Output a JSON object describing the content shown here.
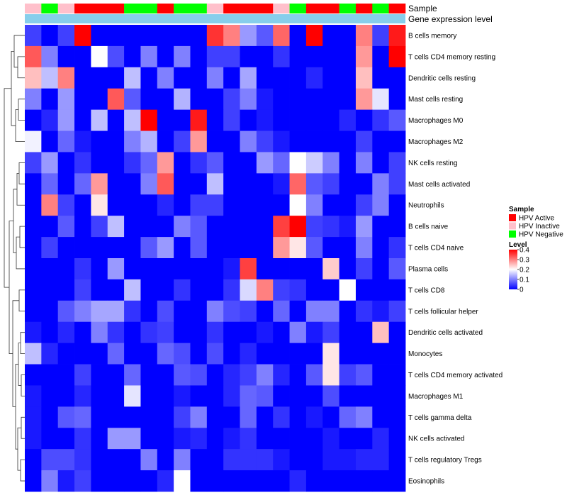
{
  "chart_data": {
    "type": "heatmap",
    "title": "",
    "row_labels": [
      "B cells memory",
      "T cells CD4 memory resting",
      "Dendritic cells resting",
      "Mast cells resting",
      "Macrophages M0",
      "Macrophages M2",
      "NK cells resting",
      "Mast cells activated",
      "Neutrophils",
      "B cells naive",
      "T cells CD4 naive",
      "Plasma cells",
      "T cells CD8",
      "T cells follicular helper",
      "Dendritic cells activated",
      "Monocytes",
      "T cells CD4 memory activated",
      "Macrophages M1",
      "T cells gamma delta",
      "NK cells activated",
      "T cells regulatory  Tregs",
      "Eosinophils"
    ],
    "annotation_tracks": {
      "sample_label": "Sample",
      "gene_label": "Gene expression level",
      "sample_groups": [
        "HPV Inactive",
        "HPV Negative",
        "HPV Inactive",
        "HPV Active",
        "HPV Active",
        "HPV Active",
        "HPV Negative",
        "HPV Negative",
        "HPV Active",
        "HPV Negative",
        "HPV Negative",
        "HPV Inactive",
        "HPV Active",
        "HPV Active",
        "HPV Active",
        "HPV Inactive",
        "HPV Negative",
        "HPV Active",
        "HPV Active",
        "HPV Negative",
        "HPV Active",
        "HPV Negative",
        "HPV Active"
      ],
      "gene_color": "#87ceeb"
    },
    "values": [
      [
        0.05,
        0,
        0.05,
        0.4,
        0,
        0,
        0,
        0,
        0,
        0,
        0,
        0.36,
        0.3,
        0.12,
        0.07,
        0.32,
        0,
        0.4,
        0,
        0,
        0.3,
        0.05,
        0.38
      ],
      [
        0.33,
        0.1,
        0,
        0,
        0.2,
        0.06,
        0,
        0.1,
        0,
        0.1,
        0,
        0.05,
        0.05,
        0,
        0,
        0.04,
        0,
        0,
        0,
        0,
        0.28,
        0,
        0.4
      ],
      [
        0.25,
        0.15,
        0.3,
        0,
        0,
        0,
        0.15,
        0,
        0.1,
        0,
        0,
        0.1,
        0,
        0.13,
        0,
        0,
        0,
        0.03,
        0,
        0,
        0.25,
        0,
        0
      ],
      [
        0.1,
        0,
        0.12,
        0,
        0,
        0.33,
        0.07,
        0,
        0,
        0.14,
        0,
        0,
        0.05,
        0.1,
        0.02,
        0,
        0,
        0,
        0,
        0,
        0.28,
        0.18,
        0
      ],
      [
        0,
        0.03,
        0.12,
        0,
        0.15,
        0,
        0.15,
        0.4,
        0,
        0,
        0.38,
        0,
        0.05,
        0,
        0.02,
        0,
        0,
        0,
        0,
        0.03,
        0,
        0.04,
        0.07
      ],
      [
        0.19,
        0,
        0.08,
        0.02,
        0,
        0,
        0.1,
        0.14,
        0,
        0.05,
        0.28,
        0,
        0,
        0.1,
        0.05,
        0.02,
        0,
        0,
        0,
        0,
        0.05,
        0,
        0
      ],
      [
        0.05,
        0.12,
        0,
        0.04,
        0,
        0,
        0.04,
        0.08,
        0.28,
        0,
        0.04,
        0.07,
        0,
        0,
        0.12,
        0.08,
        0.2,
        0.16,
        0.1,
        0,
        0.1,
        0,
        0.05
      ],
      [
        0,
        0.08,
        0,
        0.08,
        0.28,
        0,
        0,
        0.1,
        0.33,
        0,
        0,
        0.15,
        0,
        0,
        0,
        0.02,
        0.32,
        0.07,
        0.05,
        0,
        0,
        0.1,
        0.05
      ],
      [
        0,
        0.3,
        0.05,
        0,
        0.22,
        0,
        0,
        0,
        0.03,
        0,
        0.05,
        0.05,
        0,
        0,
        0,
        0,
        0.2,
        0.1,
        0,
        0,
        0.05,
        0.1,
        0
      ],
      [
        0,
        0,
        0.07,
        0,
        0.05,
        0.15,
        0,
        0,
        0,
        0.1,
        0.07,
        0,
        0,
        0,
        0,
        0.35,
        0.4,
        0.05,
        0.04,
        0.02,
        0.12,
        0,
        0
      ],
      [
        0,
        0.05,
        0,
        0,
        0,
        0,
        0,
        0.07,
        0.12,
        0,
        0.07,
        0,
        0,
        0,
        0,
        0.28,
        0.22,
        0.07,
        0,
        0,
        0.1,
        0,
        0.04
      ],
      [
        0,
        0,
        0,
        0.04,
        0,
        0.12,
        0,
        0,
        0,
        0,
        0,
        0,
        0.02,
        0.35,
        0,
        0,
        0,
        0,
        0.24,
        0,
        0.05,
        0,
        0.07
      ],
      [
        0,
        0,
        0,
        0.05,
        0,
        0,
        0.15,
        0,
        0,
        0.04,
        0,
        0,
        0.04,
        0.17,
        0.3,
        0.05,
        0.04,
        0,
        0,
        0.2,
        0,
        0,
        0
      ],
      [
        0,
        0,
        0.07,
        0.1,
        0.13,
        0.13,
        0.04,
        0,
        0.06,
        0,
        0,
        0.1,
        0.06,
        0.05,
        0,
        0.08,
        0,
        0.1,
        0.1,
        0,
        0.04,
        0.02,
        0.05
      ],
      [
        0.02,
        0,
        0.03,
        0,
        0.1,
        0.04,
        0,
        0.04,
        0.05,
        0,
        0,
        0.04,
        0,
        0,
        0.02,
        0,
        0.1,
        0.02,
        0.05,
        0,
        0,
        0.25,
        0
      ],
      [
        0.15,
        0.03,
        0,
        0,
        0,
        0.08,
        0,
        0,
        0.08,
        0.06,
        0,
        0.06,
        0,
        0.03,
        0,
        0,
        0,
        0,
        0.22,
        0,
        0,
        0,
        0
      ],
      [
        0,
        0,
        0,
        0.05,
        0,
        0,
        0.08,
        0,
        0,
        0.07,
        0.06,
        0,
        0.03,
        0.05,
        0.1,
        0.03,
        0,
        0.07,
        0.22,
        0.05,
        0.07,
        0,
        0
      ],
      [
        0.02,
        0,
        0,
        0.03,
        0,
        0,
        0.18,
        0,
        0,
        0.02,
        0,
        0,
        0.03,
        0.08,
        0.07,
        0,
        0,
        0,
        0.06,
        0,
        0,
        0,
        0
      ],
      [
        0.02,
        0,
        0.07,
        0.08,
        0,
        0,
        0,
        0,
        0,
        0.05,
        0.1,
        0,
        0,
        0.08,
        0,
        0.04,
        0,
        0.02,
        0,
        0.08,
        0.1,
        0,
        0
      ],
      [
        0.02,
        0,
        0,
        0.04,
        0,
        0.12,
        0.12,
        0,
        0,
        0.02,
        0.03,
        0,
        0.02,
        0.04,
        0,
        0,
        0,
        0,
        0.02,
        0,
        0,
        0.03,
        0
      ],
      [
        0,
        0.06,
        0.06,
        0.04,
        0,
        0,
        0,
        0.1,
        0,
        0.1,
        0,
        0,
        0.04,
        0.04,
        0.04,
        0.02,
        0,
        0,
        0.02,
        0.02,
        0.03,
        0.03,
        0
      ],
      [
        0,
        0.1,
        0.02,
        0.05,
        0,
        0,
        0,
        0,
        0.03,
        0.2,
        0,
        0,
        0,
        0,
        0,
        0,
        0.03,
        0,
        0,
        0,
        0,
        0,
        0
      ]
    ],
    "value_range": [
      0,
      0.4
    ],
    "color_scale": {
      "low": "#0000ff",
      "mid": "#ffffff",
      "high": "#ff0000",
      "mid_value": 0.2
    },
    "legends": {
      "sample": {
        "title": "Sample",
        "items": [
          {
            "label": "HPV Active",
            "color": "#ff0000"
          },
          {
            "label": "HPV Inactive",
            "color": "#ffc0cb"
          },
          {
            "label": "HPV Negative",
            "color": "#00ff00"
          }
        ]
      },
      "level": {
        "title": "Level",
        "ticks": [
          "0.4",
          "0.3",
          "0.2",
          "0.1",
          "0"
        ],
        "tick_values": [
          0.4,
          0.3,
          0.2,
          0.1,
          0
        ]
      }
    }
  }
}
